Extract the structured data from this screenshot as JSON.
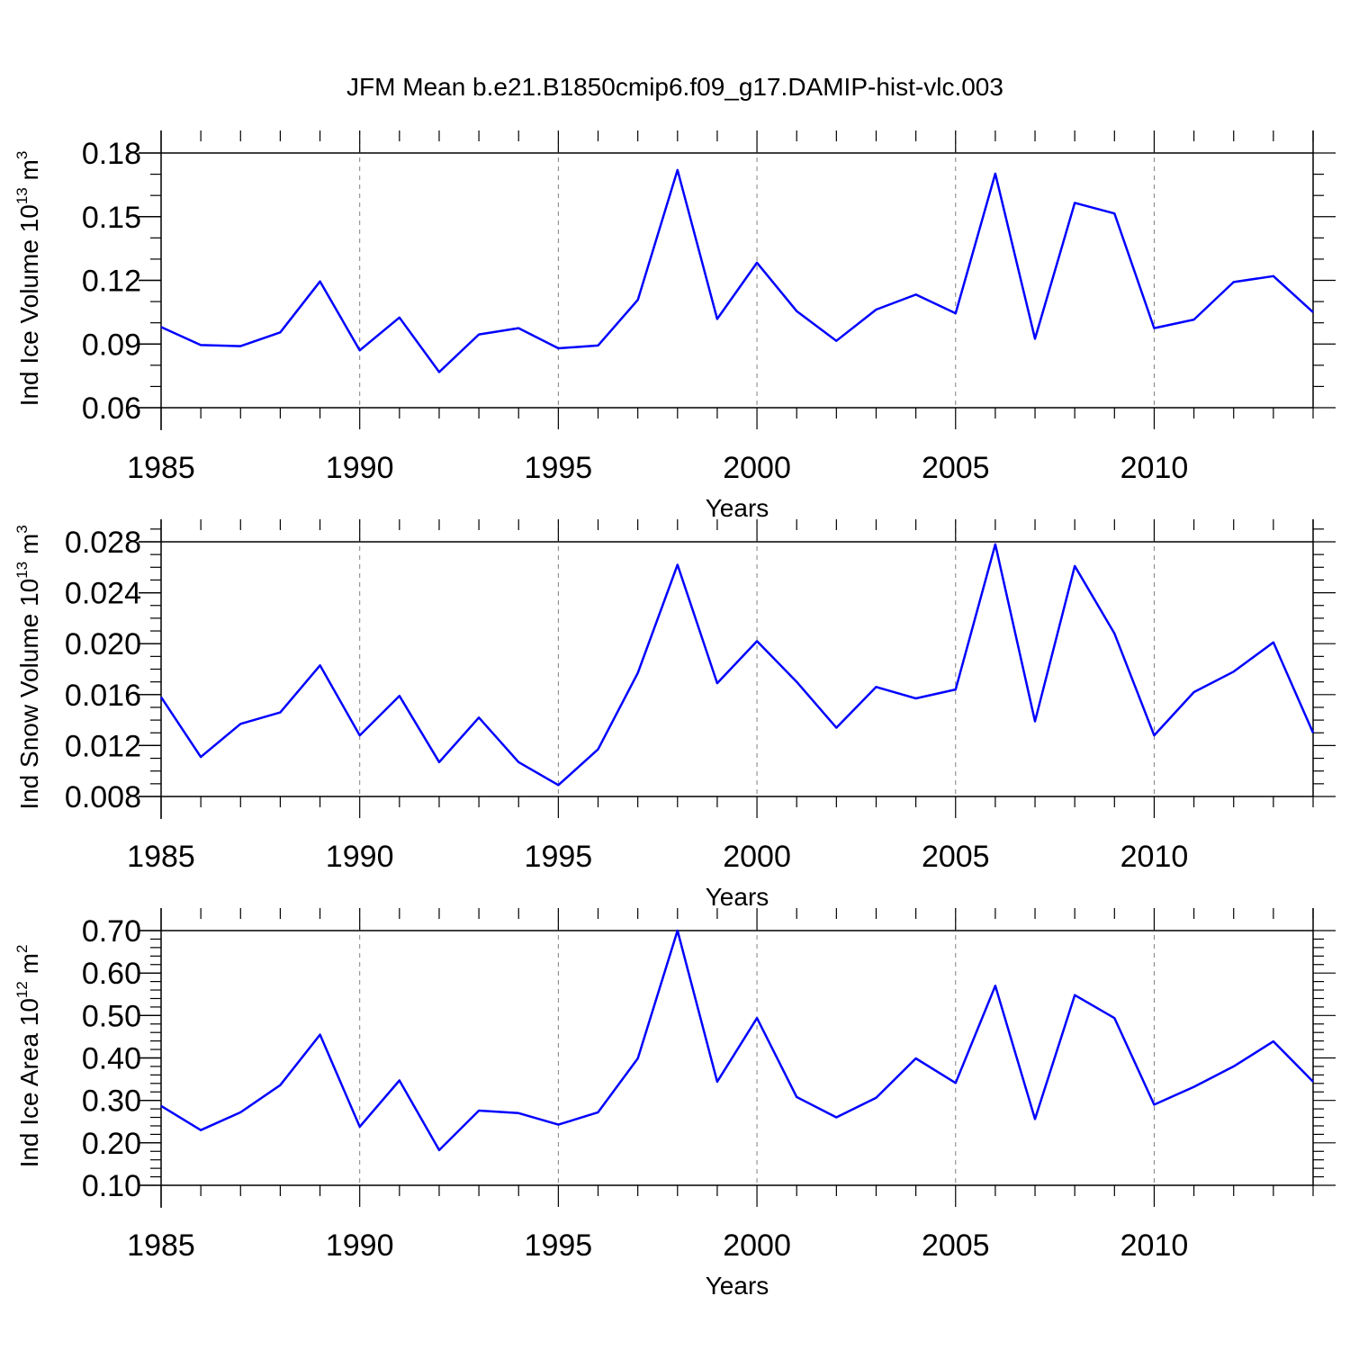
{
  "title": "JFM Mean b.e21.B1850cmip6.f09_g17.DAMIP-hist-vlc.003",
  "colors": {
    "series": "#0000ff",
    "grid": "#808080",
    "axes": "#000000"
  },
  "chart_data": [
    {
      "type": "line",
      "ylabel_main": "Ind Ice Volume 10",
      "ylabel_exp1": "13",
      "ylabel_mid": " m",
      "ylabel_exp2": "3",
      "xlabel": "Years",
      "xlim": [
        1985,
        2014
      ],
      "ylim": [
        0.06,
        0.18
      ],
      "yticks": [
        0.06,
        0.09,
        0.12,
        0.15,
        0.18
      ],
      "ytick_labels": [
        "0.06",
        "0.09",
        "0.12",
        "0.15",
        "0.18"
      ],
      "yminor_step": 0.01,
      "xticks": [
        1985,
        1990,
        1995,
        2000,
        2005,
        2010
      ],
      "xtick_labels": [
        "1985",
        "1990",
        "1995",
        "2000",
        "2005",
        "2010"
      ],
      "grid_x": [
        1990,
        1995,
        2000,
        2005,
        2010
      ],
      "x": [
        1985,
        1986,
        1987,
        1988,
        1989,
        1990,
        1991,
        1992,
        1993,
        1994,
        1995,
        1996,
        1997,
        1998,
        1999,
        2000,
        2001,
        2002,
        2003,
        2004,
        2005,
        2006,
        2007,
        2008,
        2009,
        2010,
        2011,
        2012,
        2013,
        2014
      ],
      "series": [
        {
          "name": "Ind Ice Volume",
          "values": [
            0.098,
            0.0895,
            0.089,
            0.0955,
            0.1195,
            0.087,
            0.1025,
            0.0768,
            0.0945,
            0.0975,
            0.088,
            0.0893,
            0.1108,
            0.172,
            0.1018,
            0.1283,
            0.1055,
            0.0915,
            0.1062,
            0.1133,
            0.1045,
            0.1703,
            0.0925,
            0.1565,
            0.1515,
            0.0975,
            0.1015,
            0.1192,
            0.122,
            0.105
          ]
        }
      ]
    },
    {
      "type": "line",
      "ylabel_main": "Ind Snow Volume 10",
      "ylabel_exp1": "13",
      "ylabel_mid": " m",
      "ylabel_exp2": "3",
      "xlabel": "Years",
      "xlim": [
        1985,
        2014
      ],
      "ylim": [
        0.008,
        0.028
      ],
      "yticks": [
        0.008,
        0.012,
        0.016,
        0.02,
        0.024,
        0.028
      ],
      "ytick_labels": [
        "0.008",
        "0.012",
        "0.016",
        "0.020",
        "0.024",
        "0.028"
      ],
      "yminor_step": 0.001,
      "ymax_extend": 0.0297,
      "xticks": [
        1985,
        1990,
        1995,
        2000,
        2005,
        2010
      ],
      "xtick_labels": [
        "1985",
        "1990",
        "1995",
        "2000",
        "2005",
        "2010"
      ],
      "grid_x": [
        1990,
        1995,
        2000,
        2005,
        2010
      ],
      "x": [
        1985,
        1986,
        1987,
        1988,
        1989,
        1990,
        1991,
        1992,
        1993,
        1994,
        1995,
        1996,
        1997,
        1998,
        1999,
        2000,
        2001,
        2002,
        2003,
        2004,
        2005,
        2006,
        2007,
        2008,
        2009,
        2010,
        2011,
        2012,
        2013,
        2014
      ],
      "series": [
        {
          "name": "Ind Snow Volume",
          "values": [
            0.0158,
            0.0111,
            0.0137,
            0.0146,
            0.0183,
            0.0128,
            0.0159,
            0.0107,
            0.0142,
            0.0107,
            0.0089,
            0.0117,
            0.0177,
            0.0262,
            0.0169,
            0.0202,
            0.017,
            0.0134,
            0.0166,
            0.0157,
            0.0164,
            0.0278,
            0.0139,
            0.0261,
            0.0208,
            0.0128,
            0.0162,
            0.0178,
            0.0201,
            0.013
          ]
        }
      ]
    },
    {
      "type": "line",
      "ylabel_main": "Ind Ice Area 10",
      "ylabel_exp1": "12",
      "ylabel_mid": " m",
      "ylabel_exp2": "2",
      "xlabel": "Years",
      "xlim": [
        1985,
        2014
      ],
      "ylim": [
        0.1,
        0.7
      ],
      "yticks": [
        0.1,
        0.2,
        0.3,
        0.4,
        0.5,
        0.6,
        0.7
      ],
      "ytick_labels": [
        "0.10",
        "0.20",
        "0.30",
        "0.40",
        "0.50",
        "0.60",
        "0.70"
      ],
      "yminor_step": 0.02,
      "xticks": [
        1985,
        1990,
        1995,
        2000,
        2005,
        2010
      ],
      "xtick_labels": [
        "1985",
        "1990",
        "1995",
        "2000",
        "2005",
        "2010"
      ],
      "grid_x": [
        1990,
        1995,
        2000,
        2005,
        2010
      ],
      "x": [
        1985,
        1986,
        1987,
        1988,
        1989,
        1990,
        1991,
        1992,
        1993,
        1994,
        1995,
        1996,
        1997,
        1998,
        1999,
        2000,
        2001,
        2002,
        2003,
        2004,
        2005,
        2006,
        2007,
        2008,
        2009,
        2010,
        2011,
        2012,
        2013,
        2014
      ],
      "series": [
        {
          "name": "Ind Ice Area",
          "values": [
            0.287,
            0.23,
            0.272,
            0.336,
            0.455,
            0.238,
            0.347,
            0.183,
            0.276,
            0.27,
            0.243,
            0.272,
            0.399,
            0.7,
            0.344,
            0.494,
            0.308,
            0.26,
            0.306,
            0.399,
            0.341,
            0.57,
            0.256,
            0.548,
            0.494,
            0.29,
            0.332,
            0.38,
            0.439,
            0.344
          ]
        }
      ]
    }
  ]
}
